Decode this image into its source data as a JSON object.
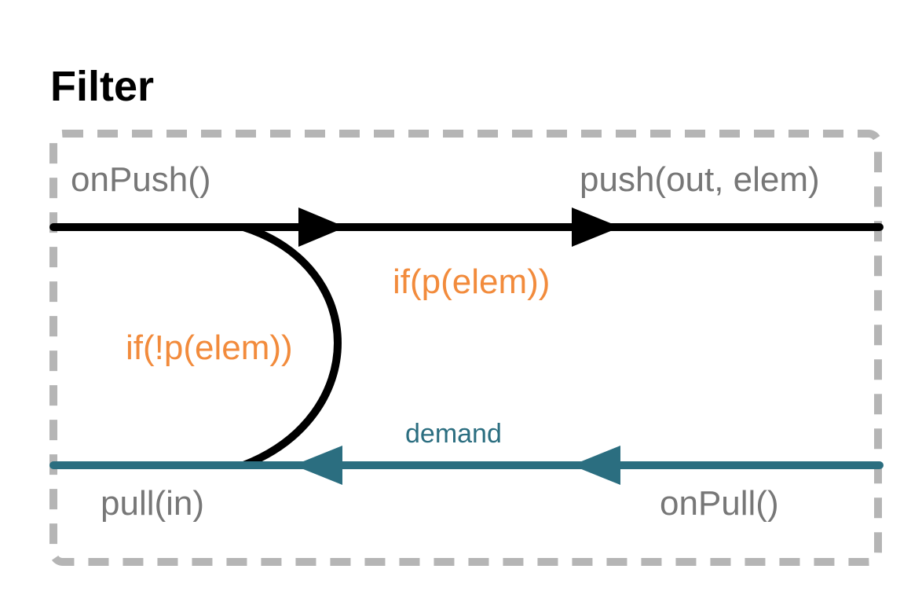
{
  "title": "Filter",
  "labels": {
    "on_push": "onPush()",
    "push": "push(out, elem)",
    "if_p": "if(p(elem))",
    "if_not_p": "if(!p(elem))",
    "demand": "demand",
    "pull": "pull(in)",
    "on_pull": "onPull()"
  },
  "colors": {
    "push_line": "#000000",
    "pull_line": "#2b6e80",
    "condition_text": "#f28b3c",
    "label_text": "#777777",
    "border": "#b5b5b5"
  }
}
